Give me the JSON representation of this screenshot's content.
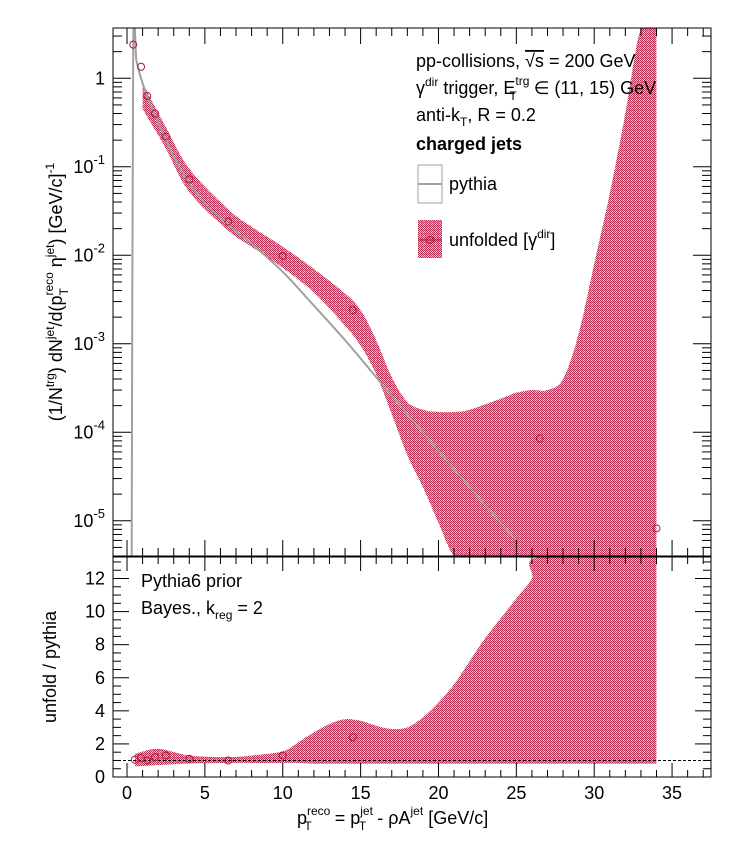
{
  "chart_data": [
    {
      "type": "line",
      "panel": "main",
      "ylabel": {
        "prefix": "(1/N",
        "sup1": "trg",
        "mid1": ") dN",
        "sup2": "jet",
        "mid2": "/d(p",
        "sub3": "T",
        "sup3": "reco",
        "mid3": " η",
        "sup4": "jet",
        "mid4": ") [GeV/c]",
        "sup5": "-1"
      },
      "xlim": [
        -0.9,
        37.5
      ],
      "ylim": [
        4e-06,
        3.7
      ],
      "log_y": true,
      "yticks": [
        {
          "value": 1e-05,
          "base": "10",
          "exp": "-5"
        },
        {
          "value": 0.0001,
          "base": "10",
          "exp": "-4"
        },
        {
          "value": 0.001,
          "base": "10",
          "exp": "-3"
        },
        {
          "value": 0.01,
          "base": "10",
          "exp": "-2"
        },
        {
          "value": 0.1,
          "base": "10",
          "exp": "-1"
        },
        {
          "value": 1,
          "base": "1",
          "exp": ""
        }
      ],
      "series": [
        {
          "name": "pythia",
          "style": "line",
          "color": "#a0a0a0",
          "x": [
            0.3,
            0.4,
            0.6,
            0.9,
            1.3,
            1.8,
            2.5,
            3.0,
            4.0,
            5.0,
            6.5,
            8.0,
            10.0,
            12.0,
            14.0,
            16.0,
            18.0,
            20.0,
            22.0,
            24.0,
            25.0
          ],
          "y": [
            4e-06,
            2.4,
            1.6,
            1.0,
            0.62,
            0.38,
            0.2,
            0.13,
            0.065,
            0.039,
            0.022,
            0.0135,
            0.0065,
            0.0027,
            0.0011,
            0.00042,
            0.00016,
            6.2e-05,
            2.4e-05,
            9.5e-06,
            6e-06
          ]
        },
        {
          "name": "unfolded [γdir]",
          "legend_main": "unfolded [γ",
          "legend_sup": "dir",
          "legend_close": "]",
          "style": "markers+band",
          "color": "#b01840",
          "points": [
            {
              "x": 0.4,
              "y": 2.4
            },
            {
              "x": 0.9,
              "y": 1.35
            },
            {
              "x": 1.3,
              "y": 0.63
            },
            {
              "x": 1.8,
              "y": 0.4
            },
            {
              "x": 2.5,
              "y": 0.22
            },
            {
              "x": 4.0,
              "y": 0.072
            },
            {
              "x": 6.5,
              "y": 0.024
            },
            {
              "x": 10.0,
              "y": 0.0098
            },
            {
              "x": 14.5,
              "y": 0.0024
            },
            {
              "x": 26.5,
              "y": 8.5e-05
            },
            {
              "x": 34.0,
              "y": 8.2e-06
            }
          ],
          "band_x": [
            1.0,
            1.5,
            2.5,
            4.0,
            6.5,
            8.0,
            10.0,
            12.0,
            14.0,
            15.0,
            16.0,
            17.0,
            18.0,
            19.0,
            20.0,
            21.0,
            22.0,
            24.0,
            25.0,
            26.0,
            27.0,
            28.0,
            29.0,
            30.0,
            31.0,
            32.0,
            33.0,
            34.0
          ],
          "band_hi": [
            0.9,
            0.6,
            0.28,
            0.095,
            0.033,
            0.021,
            0.0125,
            0.007,
            0.0037,
            0.0024,
            0.0011,
            0.00042,
            0.00022,
            0.00018,
            0.00017,
            0.00017,
            0.00018,
            0.00024,
            0.00028,
            0.0003,
            0.0003,
            0.0004,
            0.0013,
            0.008,
            0.05,
            0.4,
            3.7,
            3.7
          ],
          "band_lo": [
            0.45,
            0.32,
            0.16,
            0.052,
            0.019,
            0.0125,
            0.0072,
            0.0038,
            0.0016,
            0.00095,
            0.00045,
            0.00016,
            5.5e-05,
            2.4e-05,
            9.5e-06,
            4e-06,
            4e-06,
            4e-06,
            4e-06,
            4e-06,
            4e-06,
            4e-06,
            4e-06,
            4e-06,
            4e-06,
            4e-06,
            4e-06,
            4e-06
          ]
        }
      ]
    },
    {
      "type": "scatter",
      "panel": "ratio",
      "ylabel": "unfold / pythia",
      "xlabel": {
        "p": "p",
        "sup1": "reco",
        "sub1": "T",
        "eq": " = p",
        "sup2": "jet",
        "sub2": "T",
        "rest": " - ρA",
        "sup3": "jet",
        "unit": " [GeV/c]"
      },
      "xlim": [
        -0.9,
        37.5
      ],
      "ylim": [
        0,
        13.3
      ],
      "xticks": [
        0,
        5,
        10,
        15,
        20,
        25,
        30,
        35
      ],
      "yticks": [
        0,
        2,
        4,
        6,
        8,
        10,
        12
      ],
      "reference_line": 1,
      "points": [
        {
          "x": 0.5,
          "y": 1.05
        },
        {
          "x": 0.9,
          "y": 1.15
        },
        {
          "x": 1.3,
          "y": 1.0
        },
        {
          "x": 1.8,
          "y": 1.2
        },
        {
          "x": 2.5,
          "y": 1.3
        },
        {
          "x": 4.0,
          "y": 1.1
        },
        {
          "x": 6.5,
          "y": 1.0
        },
        {
          "x": 10.0,
          "y": 1.3
        },
        {
          "x": 14.5,
          "y": 2.4
        }
      ],
      "band_x": [
        0.5,
        2.0,
        4.0,
        6.5,
        8.0,
        10.0,
        11.0,
        12.0,
        13.0,
        14.0,
        15.0,
        16.0,
        17.0,
        18.0,
        19.0,
        20.0,
        21.0,
        22.0,
        23.0,
        24.0,
        25.0,
        26.0,
        26.5,
        34.0
      ],
      "band_hi": [
        1.4,
        1.7,
        1.3,
        1.2,
        1.3,
        1.55,
        2.1,
        2.7,
        3.2,
        3.5,
        3.4,
        3.1,
        2.9,
        3.0,
        3.6,
        4.5,
        5.6,
        7.0,
        8.4,
        9.6,
        10.8,
        12.0,
        13.3,
        13.3
      ],
      "band_lo": [
        0.65,
        0.72,
        0.82,
        0.85,
        0.85,
        0.85,
        0.85,
        0.8,
        0.8,
        0.8,
        0.8,
        0.8,
        0.8,
        0.8,
        0.8,
        0.8,
        0.8,
        0.8,
        0.8,
        0.8,
        0.8,
        0.8,
        0.8,
        0.8
      ]
    }
  ],
  "annotations": {
    "line1_main": "pp-collisions, ",
    "line1_sqrt": "√s",
    "line1_rest": " = 200 GeV",
    "line2_gamma": "γ",
    "line2_gamma_sup": "dir",
    "line2_mid": " trigger, E",
    "line2_e_sup": "trg",
    "line2_e_sub": "T",
    "line2_rest": " ∈ (11, 15) GeV",
    "line3_main": "anti-k",
    "line3_sub": "T",
    "line3_rest": ", R = 0.2",
    "line4": "charged jets",
    "ratio_line1": "Pythia6 prior",
    "ratio_line2_main": "Bayes., k",
    "ratio_line2_sub": "reg",
    "ratio_line2_rest": " = 2"
  },
  "colors": {
    "pythia": "#a0a0a0",
    "unfolded": "#b01840",
    "band": "#b01840"
  }
}
